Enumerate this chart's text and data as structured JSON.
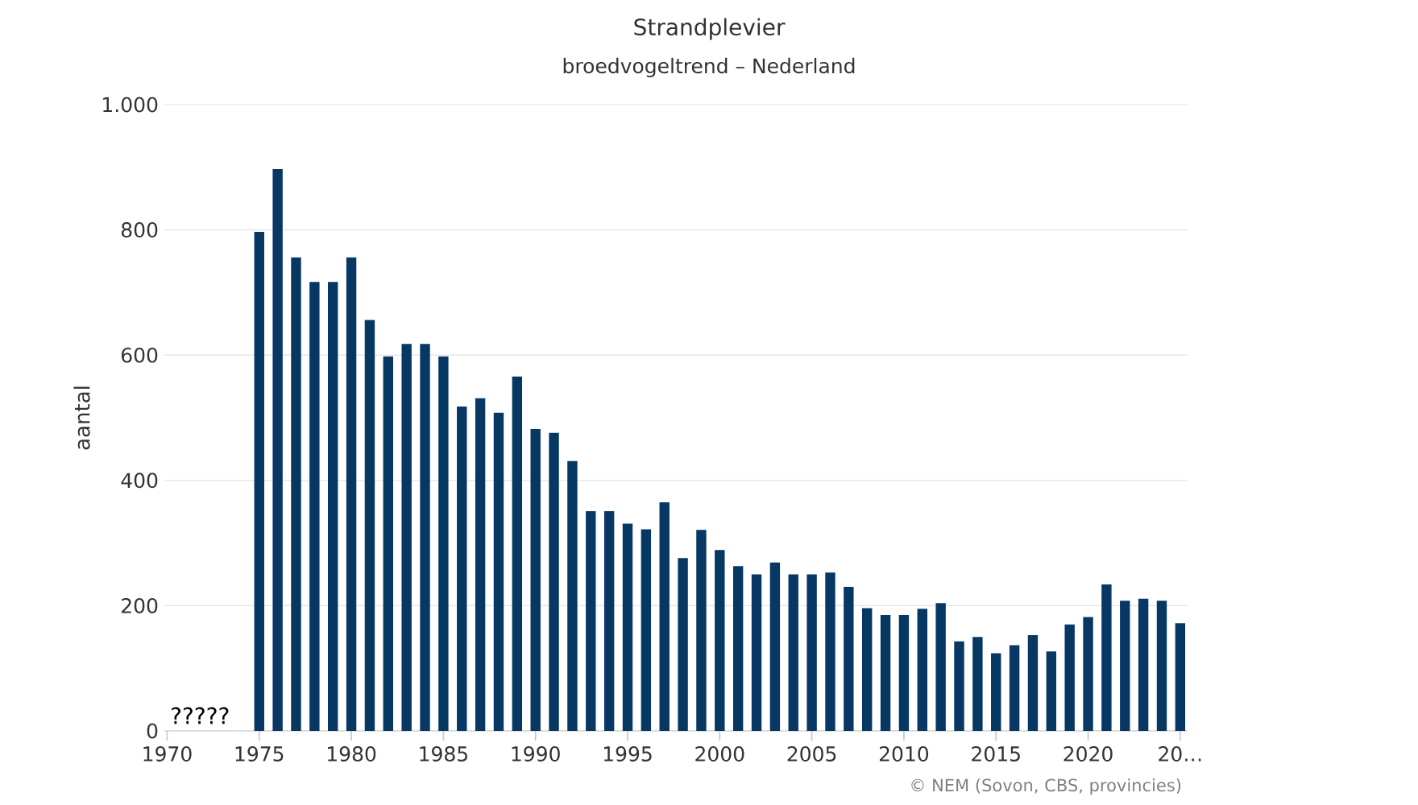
{
  "chart_data": {
    "type": "bar",
    "title": "Strandplevier",
    "subtitle": "broedvogeltrend – Nederland",
    "ylabel": "aantal",
    "categories": [
      "1970",
      null,
      null,
      null,
      null,
      "1975",
      null,
      null,
      null,
      null,
      "1980",
      null,
      null,
      null,
      null,
      "1985",
      null,
      null,
      null,
      null,
      "1990",
      null,
      null,
      null,
      null,
      "1995",
      null,
      null,
      null,
      null,
      "2000",
      null,
      null,
      null,
      null,
      "2005",
      null,
      null,
      null,
      null,
      "2010",
      null,
      null,
      null,
      null,
      "2015",
      null,
      null,
      null,
      null,
      "2020",
      null,
      null,
      null,
      null,
      "20…"
    ],
    "values": [
      null,
      null,
      null,
      null,
      null,
      797,
      897,
      756,
      717,
      717,
      756,
      656,
      598,
      618,
      618,
      598,
      518,
      531,
      508,
      566,
      482,
      476,
      431,
      351,
      351,
      331,
      322,
      365,
      276,
      321,
      289,
      263,
      250,
      269,
      250,
      250,
      253,
      230,
      196,
      185,
      185,
      195,
      204,
      143,
      150,
      124,
      137,
      153,
      127,
      170,
      182,
      234,
      208,
      211,
      208,
      172
    ],
    "color": "#073763",
    "ylim": [
      0,
      1000
    ],
    "yticks": [
      0,
      200,
      400,
      600,
      800,
      {
        "value": 1000,
        "label": "1.000"
      }
    ],
    "grid": "y",
    "annotations": [
      "?????",
      "© NEM (Sovon, CBS, provincies)"
    ]
  }
}
